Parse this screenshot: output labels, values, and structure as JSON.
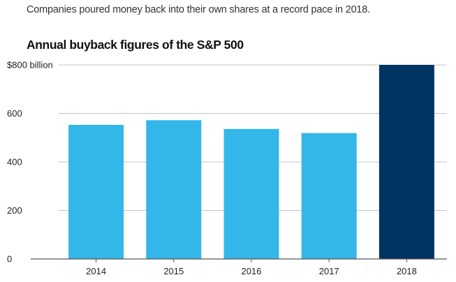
{
  "subtitle": "Companies poured money back into their own shares at a record pace in 2018.",
  "chart_data": {
    "type": "bar",
    "title": "Annual buyback figures of the S&P 500",
    "categories": [
      "2014",
      "2015",
      "2016",
      "2017",
      "2018"
    ],
    "values": [
      553,
      572,
      536,
      519,
      806
    ],
    "y_ticks": [
      {
        "value": 0,
        "label": "0"
      },
      {
        "value": 200,
        "label": "200"
      },
      {
        "value": 400,
        "label": "400"
      },
      {
        "value": 600,
        "label": "600"
      },
      {
        "value": 800,
        "label": "$800 billion"
      }
    ],
    "ylim": [
      0,
      800
    ],
    "xlabel": "",
    "ylabel": "",
    "grid": true,
    "colors": {
      "default_bar": "#33b7e8",
      "highlight_bar": "#003462",
      "grid": "#c4c4c4",
      "axis": "#555555"
    },
    "highlight_category": "2018"
  }
}
